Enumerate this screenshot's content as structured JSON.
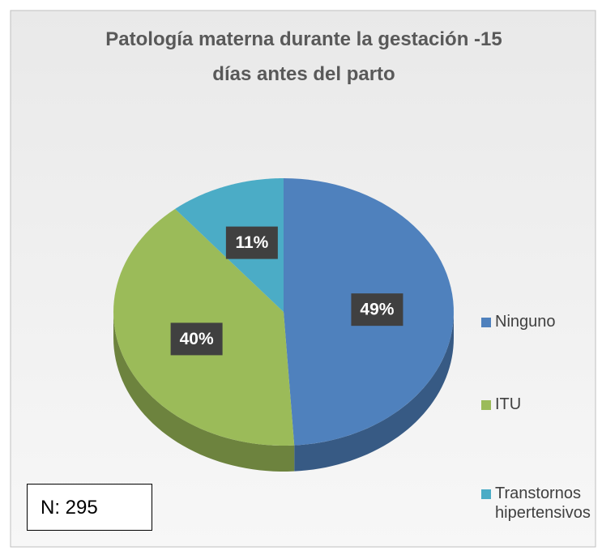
{
  "chart_data": {
    "type": "pie",
    "title": "Patología materna durante la gestación -15 días antes del parto",
    "categories": [
      "Ninguno",
      "ITU",
      "Transtornos hipertensivos"
    ],
    "values": [
      49,
      40,
      11
    ],
    "value_labels": [
      "49%",
      "40%",
      "11%"
    ],
    "colors": [
      "#4f81bd",
      "#9bbb59",
      "#4bacc6"
    ],
    "legend": "right",
    "annotation": "N: 295"
  }
}
